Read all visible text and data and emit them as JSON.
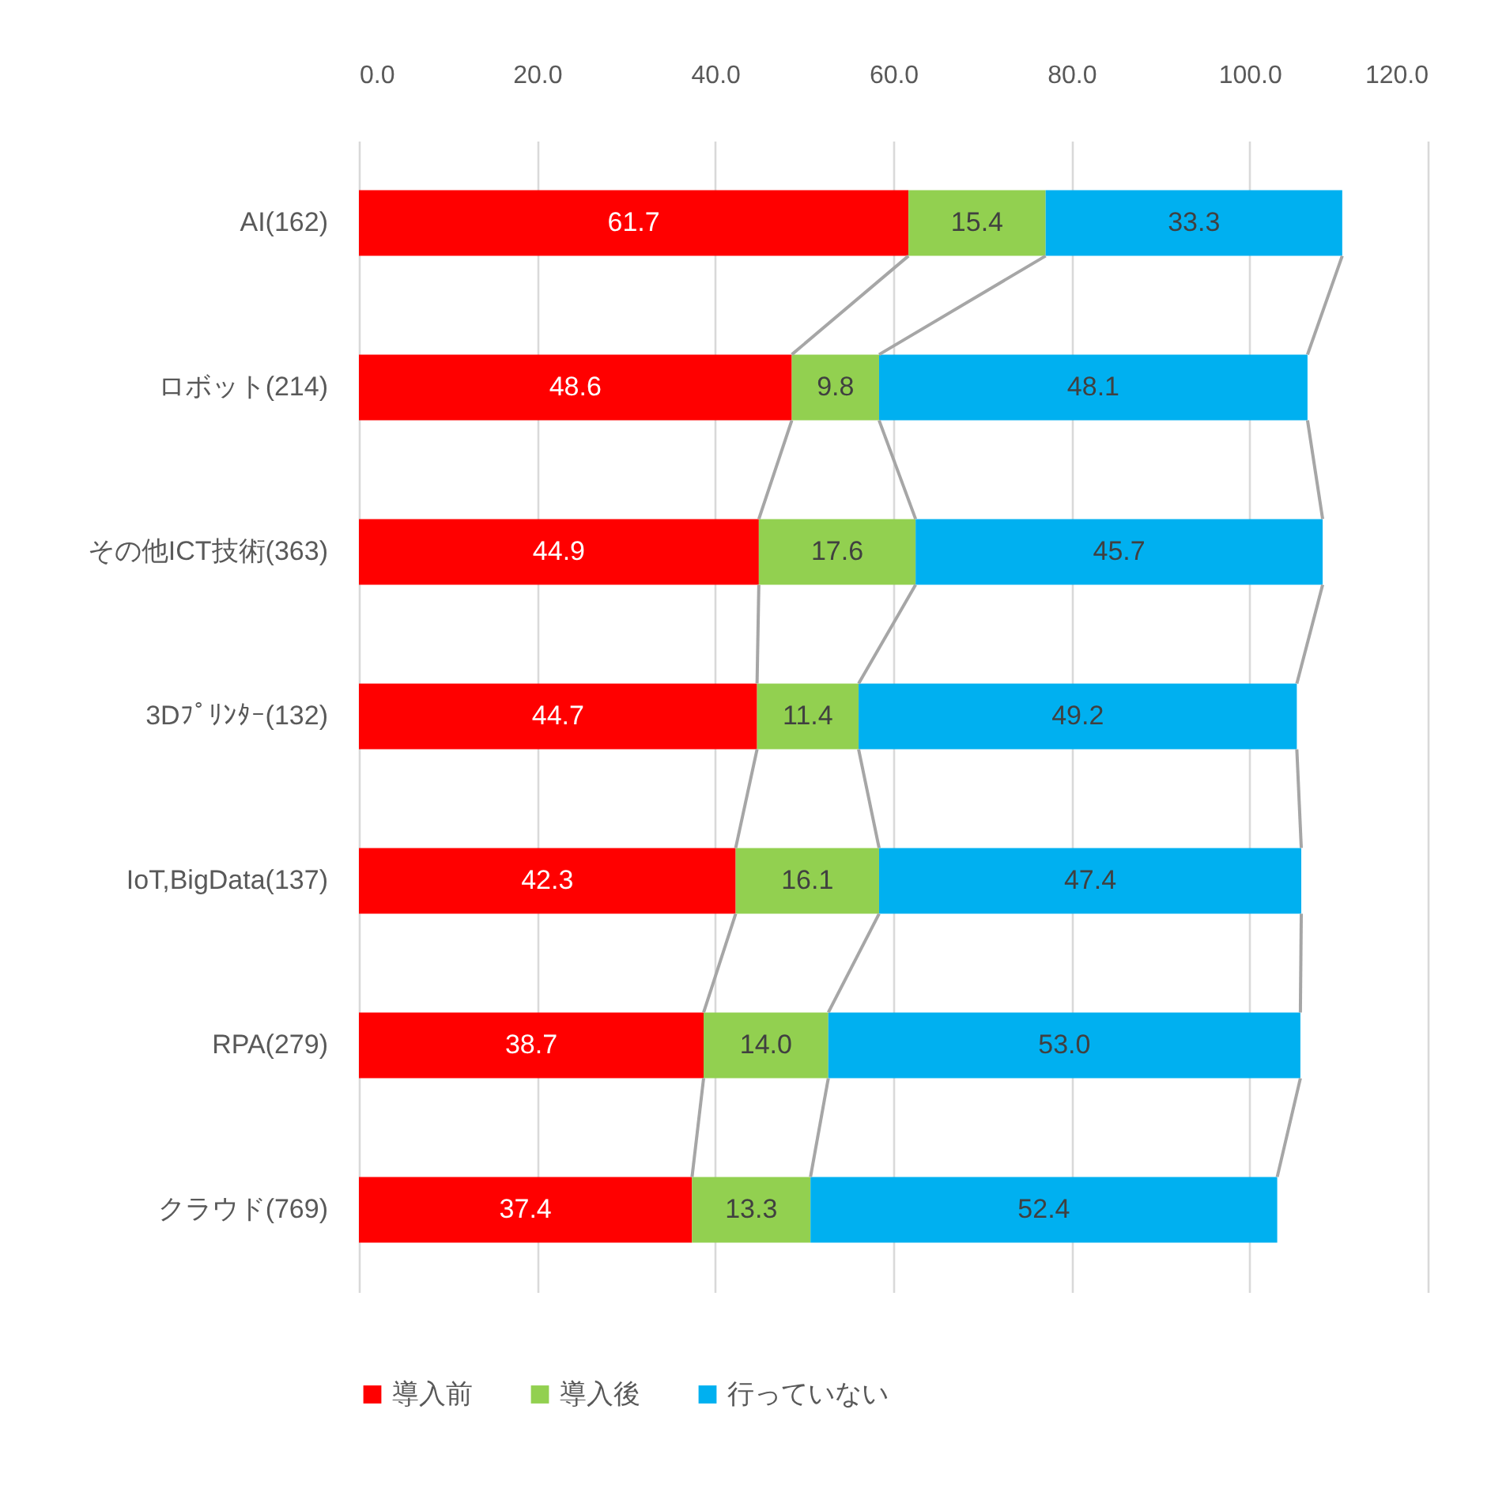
{
  "chart_data": {
    "type": "bar",
    "orientation": "horizontal",
    "stacked": true,
    "categories": [
      "AI(162)",
      "ロボット(214)",
      "その他ICT技術(363)",
      "3Dﾌﾟﾘﾝﾀｰ(132)",
      "IoT,BigData(137)",
      "RPA(279)",
      "クラウド(769)"
    ],
    "series": [
      {
        "name": "導入前",
        "color": "#ff0000",
        "values": [
          61.7,
          48.6,
          44.9,
          44.7,
          42.3,
          38.7,
          37.4
        ],
        "value_labels": [
          "61.7",
          "48.6",
          "44.9",
          "44.7",
          "42.3",
          "38.7",
          "37.4"
        ]
      },
      {
        "name": "導入後",
        "color": "#92d050",
        "values": [
          15.4,
          9.8,
          17.6,
          11.4,
          16.1,
          14.0,
          13.3
        ],
        "value_labels": [
          "15.4",
          "9.8",
          "17.6",
          "11.4",
          "16.1",
          "14.0",
          "13.3"
        ]
      },
      {
        "name": "行っていない",
        "color": "#00b0f0",
        "values": [
          33.3,
          48.1,
          45.7,
          49.2,
          47.4,
          53.0,
          52.4
        ],
        "value_labels": [
          "33.3",
          "48.1",
          "45.7",
          "49.2",
          "47.4",
          "53.0",
          "52.4"
        ]
      }
    ],
    "xlim": [
      0,
      120
    ],
    "xticks": [
      {
        "value": 0,
        "label": "0.0"
      },
      {
        "value": 20,
        "label": "20.0"
      },
      {
        "value": 40,
        "label": "40.0"
      },
      {
        "value": 60,
        "label": "60.0"
      },
      {
        "value": 80,
        "label": "80.0"
      },
      {
        "value": 100,
        "label": "100.0"
      },
      {
        "value": 120,
        "label": "120.0"
      }
    ],
    "grid": "x",
    "legend": "bottom"
  }
}
